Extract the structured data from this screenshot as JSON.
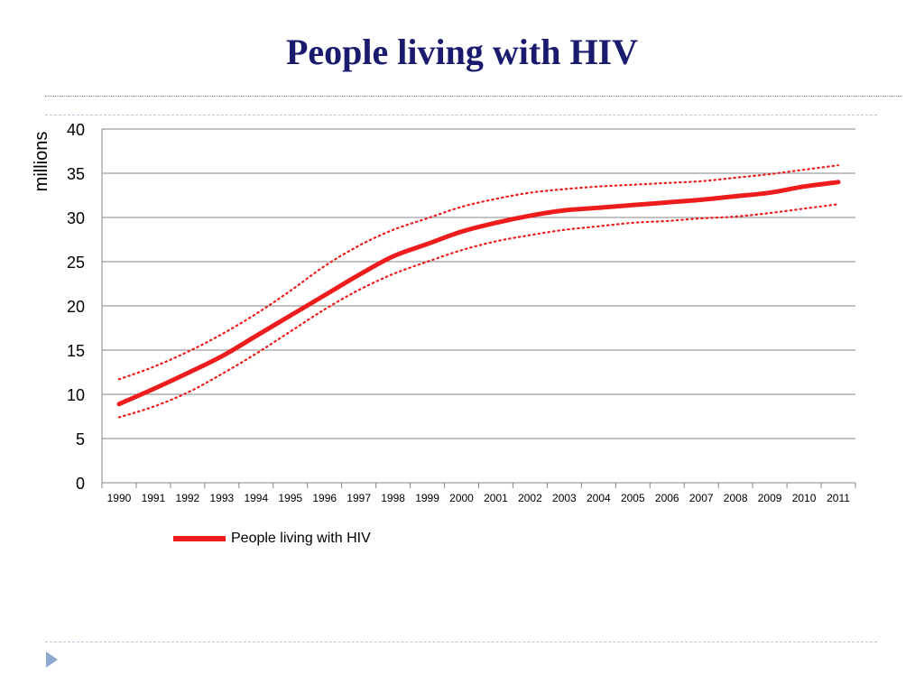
{
  "slide": {
    "title": "People living with HIV"
  },
  "colors": {
    "title": "#1a1a6e",
    "series": "#ee1c1c",
    "gridline": "#868686",
    "bullet": "#8fa9cf"
  },
  "icons": {
    "bullet": "triangle-bullet-icon"
  },
  "chart_data": {
    "type": "line",
    "title": "",
    "xlabel": "",
    "ylabel": "millions",
    "ylim": [
      0,
      40
    ],
    "yticks": [
      0,
      5,
      10,
      15,
      20,
      25,
      30,
      35,
      40
    ],
    "grid": true,
    "legend_position": "bottom-left",
    "categories": [
      "1990",
      "1991",
      "1992",
      "1993",
      "1994",
      "1995",
      "1996",
      "1997",
      "1998",
      "1999",
      "2000",
      "2001",
      "2002",
      "2003",
      "2004",
      "2005",
      "2006",
      "2007",
      "2008",
      "2009",
      "2010",
      "2011"
    ],
    "series": [
      {
        "name": "People living with HIV",
        "style": "solid",
        "values": [
          8.9,
          10.6,
          12.4,
          14.3,
          16.6,
          18.9,
          21.2,
          23.5,
          25.6,
          27.0,
          28.4,
          29.4,
          30.2,
          30.8,
          31.1,
          31.4,
          31.7,
          32.0,
          32.4,
          32.8,
          33.5,
          34.0
        ]
      },
      {
        "style": "dotted",
        "values": [
          11.7,
          13.1,
          14.8,
          16.8,
          19.1,
          21.7,
          24.5,
          26.8,
          28.6,
          29.9,
          31.2,
          32.1,
          32.8,
          33.2,
          33.5,
          33.7,
          33.9,
          34.1,
          34.5,
          34.9,
          35.4,
          35.9
        ]
      },
      {
        "style": "dotted",
        "values": [
          7.4,
          8.6,
          10.2,
          12.3,
          14.6,
          17.1,
          19.6,
          21.8,
          23.6,
          25.0,
          26.3,
          27.3,
          28.0,
          28.6,
          29.0,
          29.4,
          29.6,
          29.9,
          30.1,
          30.5,
          31.0,
          31.5
        ]
      }
    ]
  }
}
